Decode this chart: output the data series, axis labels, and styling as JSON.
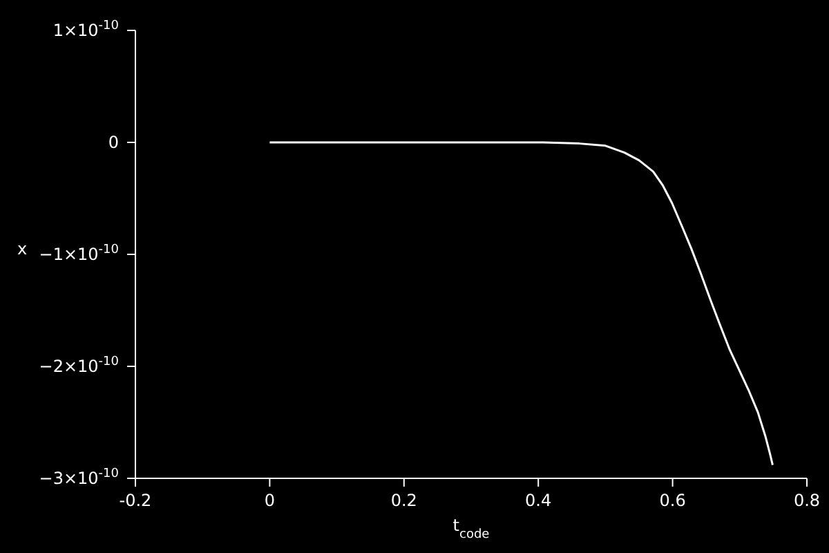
{
  "chart_data": {
    "type": "line",
    "xlabel": "t$_{code}$",
    "ylabel": "x",
    "x": [
      0,
      0.2,
      0.407,
      0.461,
      0.5,
      0.528,
      0.55,
      0.571,
      0.585,
      0.599,
      0.614,
      0.628,
      0.642,
      0.656,
      0.67,
      0.685,
      0.699,
      0.713,
      0.727,
      0.738,
      0.745,
      0.749
    ],
    "series": [
      {
        "color": "#ffffff",
        "values": [
          0,
          0,
          0,
          -1e-12,
          -3e-12,
          -9e-12,
          -1.6e-11,
          -2.6e-11,
          -3.8e-11,
          -5.4e-11,
          -7.5e-11,
          -9.5e-11,
          -1.17e-10,
          -1.4e-10,
          -1.62e-10,
          -1.85e-10,
          -2.03e-10,
          -2.21e-10,
          -2.41e-10,
          -2.62e-10,
          -2.78e-10,
          -2.88e-10
        ]
      }
    ],
    "xlim": [
      -0.2,
      0.8
    ],
    "xticks": [
      -0.2,
      0,
      0.2,
      0.4,
      0.6,
      0.8
    ],
    "ylim": [
      -3e-10,
      1e-10
    ],
    "yticks": [
      {
        "value": 1e-10,
        "label": "1×10$^{-10}$"
      },
      {
        "value": 0,
        "label": "0"
      },
      {
        "value": -1e-10,
        "label": "−1×10$^{-10}$"
      },
      {
        "value": -2e-10,
        "label": "−2×10$^{-10}$"
      },
      {
        "value": -3e-10,
        "label": "−3×10$^{-10}$"
      }
    ],
    "grid": false,
    "legend": false,
    "marker": "none",
    "line_style": "solid"
  }
}
